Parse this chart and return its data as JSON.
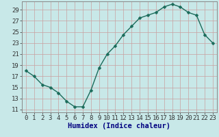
{
  "x": [
    0,
    1,
    2,
    3,
    4,
    5,
    6,
    7,
    8,
    9,
    10,
    11,
    12,
    13,
    14,
    15,
    16,
    17,
    18,
    19,
    20,
    21,
    22,
    23
  ],
  "y": [
    18,
    17,
    15.5,
    15,
    14,
    12.5,
    11.5,
    11.5,
    14.5,
    18.5,
    21,
    22.5,
    24.5,
    26,
    27.5,
    28,
    28.5,
    29.5,
    30,
    29.5,
    28.5,
    28,
    24.5,
    23
  ],
  "line_color": "#1a6b5a",
  "marker_color": "#1a6b5a",
  "bg_color": "#c8e8e8",
  "grid_color": "#b0d0d0",
  "xlabel": "Humidex (Indice chaleur)",
  "xlim": [
    -0.5,
    23.5
  ],
  "ylim": [
    10.5,
    30.5
  ],
  "yticks": [
    11,
    13,
    15,
    17,
    19,
    21,
    23,
    25,
    27,
    29
  ],
  "xticks": [
    0,
    1,
    2,
    3,
    4,
    5,
    6,
    7,
    8,
    9,
    10,
    11,
    12,
    13,
    14,
    15,
    16,
    17,
    18,
    19,
    20,
    21,
    22,
    23
  ],
  "xlabel_fontsize": 7.5,
  "tick_fontsize": 6.5,
  "marker_size": 2.5,
  "line_width": 1.0,
  "spine_color": "#888888"
}
